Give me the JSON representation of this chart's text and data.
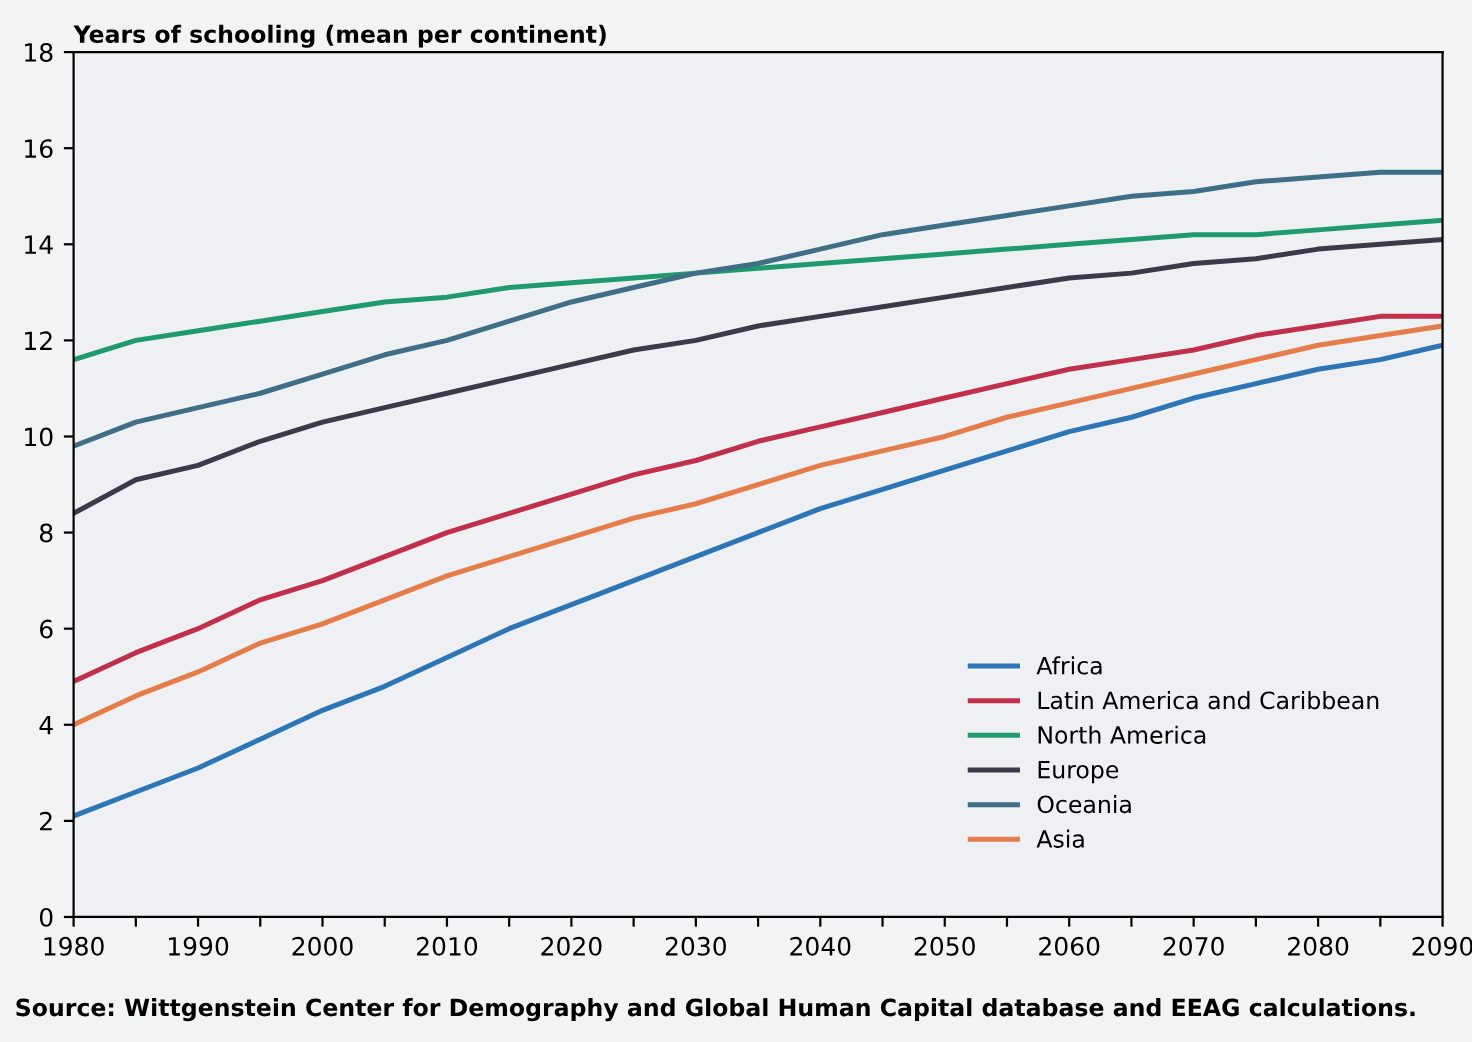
{
  "chart_data": {
    "type": "line",
    "ylabel": "Years of schooling (mean per continent)",
    "annotations": [
      "Source: Wittgenstein Center for Demography and Global Human Capital database and EEAG calculations."
    ],
    "x": [
      1980,
      1985,
      1990,
      1995,
      2000,
      2005,
      2010,
      2015,
      2020,
      2025,
      2030,
      2035,
      2040,
      2045,
      2050,
      2055,
      2060,
      2065,
      2070,
      2075,
      2080,
      2085,
      2090
    ],
    "series": [
      {
        "name": "Africa",
        "color": "#2e75b6",
        "values": [
          2.1,
          2.6,
          3.1,
          3.7,
          4.3,
          4.8,
          5.4,
          6.0,
          6.5,
          7.0,
          7.5,
          8.0,
          8.5,
          8.9,
          9.3,
          9.7,
          10.1,
          10.4,
          10.8,
          11.1,
          11.4,
          11.6,
          11.9
        ]
      },
      {
        "name": "Latin America and Caribbean",
        "color": "#c0304a",
        "values": [
          4.9,
          5.5,
          6.0,
          6.6,
          7.0,
          7.5,
          8.0,
          8.4,
          8.8,
          9.2,
          9.5,
          9.9,
          10.2,
          10.5,
          10.8,
          11.1,
          11.4,
          11.6,
          11.8,
          12.1,
          12.3,
          12.5,
          12.5
        ]
      },
      {
        "name": "North America",
        "color": "#1f9a6e",
        "values": [
          11.6,
          12.0,
          12.2,
          12.4,
          12.6,
          12.8,
          12.9,
          13.1,
          13.2,
          13.3,
          13.4,
          13.5,
          13.6,
          13.7,
          13.8,
          13.9,
          14.0,
          14.1,
          14.2,
          14.2,
          14.3,
          14.4,
          14.5
        ]
      },
      {
        "name": "Europe",
        "color": "#3a3a48",
        "values": [
          8.4,
          9.1,
          9.4,
          9.9,
          10.3,
          10.6,
          10.9,
          11.2,
          11.5,
          11.8,
          12.0,
          12.3,
          12.5,
          12.7,
          12.9,
          13.1,
          13.3,
          13.4,
          13.6,
          13.7,
          13.9,
          14.0,
          14.1
        ]
      },
      {
        "name": "Oceania",
        "color": "#3f6f86",
        "values": [
          9.8,
          10.3,
          10.6,
          10.9,
          11.3,
          11.7,
          12.0,
          12.4,
          12.8,
          13.1,
          13.4,
          13.6,
          13.9,
          14.2,
          14.4,
          14.6,
          14.8,
          15.0,
          15.1,
          15.3,
          15.4,
          15.5,
          15.5
        ]
      },
      {
        "name": "Asia",
        "color": "#e57d4a",
        "values": [
          4.0,
          4.6,
          5.1,
          5.7,
          6.1,
          6.6,
          7.1,
          7.5,
          7.9,
          8.3,
          8.6,
          9.0,
          9.4,
          9.7,
          10.0,
          10.4,
          10.7,
          11.0,
          11.3,
          11.6,
          11.9,
          12.1,
          12.3
        ]
      }
    ],
    "xlim": [
      1980,
      2090
    ],
    "xticks": [
      1980,
      {
        "value": 1985,
        "label": null
      },
      1990,
      {
        "value": 1995,
        "label": null
      },
      2000,
      {
        "value": 2005,
        "label": null
      },
      2010,
      {
        "value": 2015,
        "label": null
      },
      2020,
      {
        "value": 2025,
        "label": null
      },
      2030,
      {
        "value": 2035,
        "label": null
      },
      2040,
      {
        "value": 2045,
        "label": null
      },
      2050,
      {
        "value": 2055,
        "label": null
      },
      2060,
      {
        "value": 2065,
        "label": null
      },
      2070,
      {
        "value": 2075,
        "label": null
      },
      2080,
      {
        "value": 2085,
        "label": null
      },
      2090
    ],
    "ylim": [
      0,
      18
    ],
    "yticks": [
      0,
      2,
      4,
      6,
      8,
      10,
      12,
      14,
      16,
      18
    ],
    "grid": false,
    "legend": "bottom right",
    "marker": "none",
    "line_style": "solid"
  }
}
